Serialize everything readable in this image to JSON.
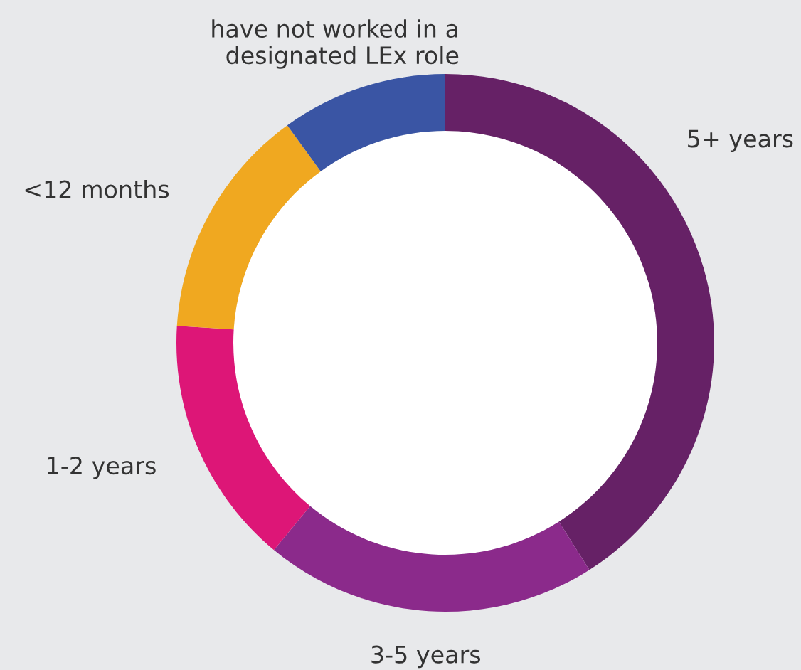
{
  "chart_data": {
    "type": "donut",
    "categories": [
      "5+ years",
      "3-5 years",
      "1-2 years",
      "<12 months",
      "have not worked in a\ndesignated LEx role"
    ],
    "values": [
      41,
      20,
      15,
      14,
      10
    ],
    "colors": [
      "#662166",
      "#8b2a8b",
      "#dd1677",
      "#f0a820",
      "#3a55a4"
    ]
  }
}
